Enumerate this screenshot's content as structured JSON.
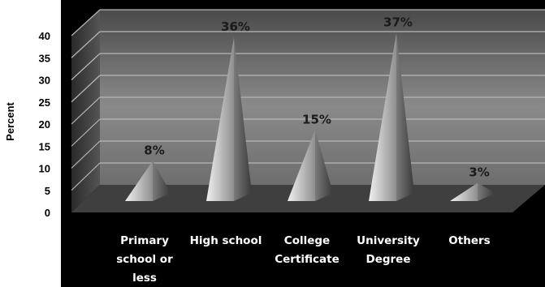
{
  "chart_data": {
    "type": "bar",
    "shape": "3d-pyramid",
    "categories": [
      "Primary school or less",
      "High school",
      "College Certificate",
      "University Degree",
      "Others"
    ],
    "category_lines": [
      [
        "Primary",
        "school or",
        "less"
      ],
      [
        "High school"
      ],
      [
        "College",
        "Certificate"
      ],
      [
        "University",
        "Degree"
      ],
      [
        "Others"
      ]
    ],
    "values": [
      8,
      36,
      15,
      37,
      3
    ],
    "data_labels": [
      "8%",
      "36%",
      "15%",
      "37%",
      "3%"
    ],
    "ylabel": "Percent",
    "ylim": [
      0,
      40
    ],
    "yticks": [
      "0",
      "5",
      "10",
      "15",
      "20",
      "25",
      "30",
      "35",
      "40"
    ],
    "grid": true,
    "colors": {
      "wall": "#5a5a5a",
      "floor": "#3d3d3d",
      "background": "#000000",
      "grid": "#b8b8b8",
      "pyramid_light": "#d4d4d4",
      "pyramid_dark": "#6a6a6a",
      "category_text": "#ffffff"
    }
  }
}
